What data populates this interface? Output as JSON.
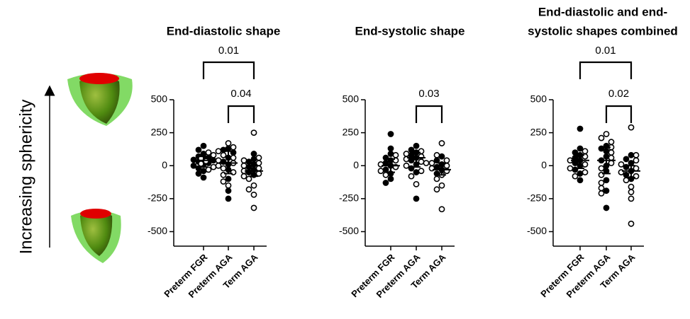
{
  "side_label": "Increasing sphericity",
  "chart_data": [
    {
      "type": "scatter",
      "title": "End-diastolic shape",
      "categories": [
        "Preterm FGR",
        "Preterm AGA",
        "Term AGA"
      ],
      "ylim": [
        -610,
        500
      ],
      "yticks": [
        500,
        250,
        0,
        -250,
        -500
      ],
      "groups": [
        {
          "filled": [
            150,
            120,
            90,
            70,
            60,
            50,
            45,
            40,
            30,
            20,
            10,
            0,
            -20,
            -40,
            -60,
            -90
          ],
          "open": [
            100,
            80,
            55,
            35,
            15,
            -10,
            -30
          ],
          "median": 40,
          "iqr": [
            -10,
            70
          ]
        },
        {
          "filled": [
            130,
            120,
            100,
            60,
            30,
            10,
            -30,
            -100,
            -190,
            -250
          ],
          "open": [
            170,
            140,
            110,
            80,
            60,
            40,
            20,
            0,
            -20,
            -50,
            -70,
            -120,
            -150
          ],
          "median": 20,
          "iqr": [
            -60,
            110
          ]
        },
        {
          "filled": [
            90,
            50,
            30,
            10,
            -10,
            -30,
            -50,
            -70
          ],
          "open": [
            250,
            60,
            40,
            20,
            0,
            -20,
            -40,
            -60,
            -80,
            -100,
            -150,
            -180,
            -220,
            -320
          ],
          "median": -40,
          "iqr": [
            -80,
            0
          ]
        }
      ],
      "brackets": [
        {
          "between": [
            "Preterm FGR",
            "Term AGA"
          ],
          "label": "0.01"
        },
        {
          "between": [
            "Preterm AGA",
            "Term AGA"
          ],
          "label": "0.04"
        }
      ]
    },
    {
      "type": "scatter",
      "title": "End-systolic shape",
      "categories": [
        "Preterm FGR",
        "Preterm AGA",
        "Term AGA"
      ],
      "ylim": [
        -610,
        500
      ],
      "yticks": [
        500,
        250,
        0,
        -250,
        -500
      ],
      "groups": [
        {
          "filled": [
            240,
            130,
            90,
            60,
            40,
            20,
            0,
            -30,
            -60,
            -100,
            -130
          ],
          "open": [
            80,
            40,
            10,
            -10,
            -40,
            -70
          ],
          "median": 0,
          "iqr": [
            -50,
            50
          ]
        },
        {
          "filled": [
            150,
            120,
            100,
            80,
            60,
            40,
            10,
            -20,
            -50,
            -250
          ],
          "open": [
            110,
            90,
            70,
            50,
            30,
            20,
            0,
            -40,
            -80,
            -140
          ],
          "median": 60,
          "iqr": [
            -10,
            100
          ]
        },
        {
          "filled": [
            70,
            40,
            10,
            -10,
            -30,
            -60
          ],
          "open": [
            170,
            80,
            40,
            20,
            0,
            -20,
            -40,
            -70,
            -100,
            -150,
            -180,
            -330
          ],
          "median": -30,
          "iqr": [
            -70,
            20
          ]
        }
      ],
      "brackets": [
        {
          "between": [
            "Preterm AGA",
            "Term AGA"
          ],
          "label": "0.03"
        }
      ]
    },
    {
      "type": "scatter",
      "title": [
        "End-diastolic and end-",
        "systolic shapes combined"
      ],
      "categories": [
        "Preterm FGR",
        "Preterm AGA",
        "Term AGA"
      ],
      "ylim": [
        -610,
        500
      ],
      "yticks": [
        500,
        250,
        0,
        -250,
        -500
      ],
      "groups": [
        {
          "filled": [
            280,
            130,
            100,
            80,
            60,
            40,
            20,
            0,
            -30,
            -60,
            -110
          ],
          "open": [
            110,
            70,
            40,
            10,
            -20,
            -50,
            -80
          ],
          "median": 40,
          "iqr": [
            -20,
            80
          ]
        },
        {
          "filled": [
            150,
            130,
            110,
            70,
            40,
            0,
            -40,
            -110,
            -190,
            -320
          ],
          "open": [
            240,
            210,
            180,
            140,
            100,
            60,
            20,
            -20,
            -70,
            -130,
            -170,
            -210
          ],
          "median": 40,
          "iqr": [
            -60,
            140
          ]
        },
        {
          "filled": [
            80,
            50,
            20,
            -10,
            -40,
            -70,
            -100
          ],
          "open": [
            290,
            80,
            40,
            10,
            -20,
            -50,
            -80,
            -110,
            -160,
            -200,
            -250,
            -440
          ],
          "median": -40,
          "iqr": [
            -90,
            0
          ]
        }
      ],
      "brackets": [
        {
          "between": [
            "Preterm FGR",
            "Term AGA"
          ],
          "label": "0.01"
        },
        {
          "between": [
            "Preterm AGA",
            "Term AGA"
          ],
          "label": "0.02"
        }
      ]
    }
  ]
}
